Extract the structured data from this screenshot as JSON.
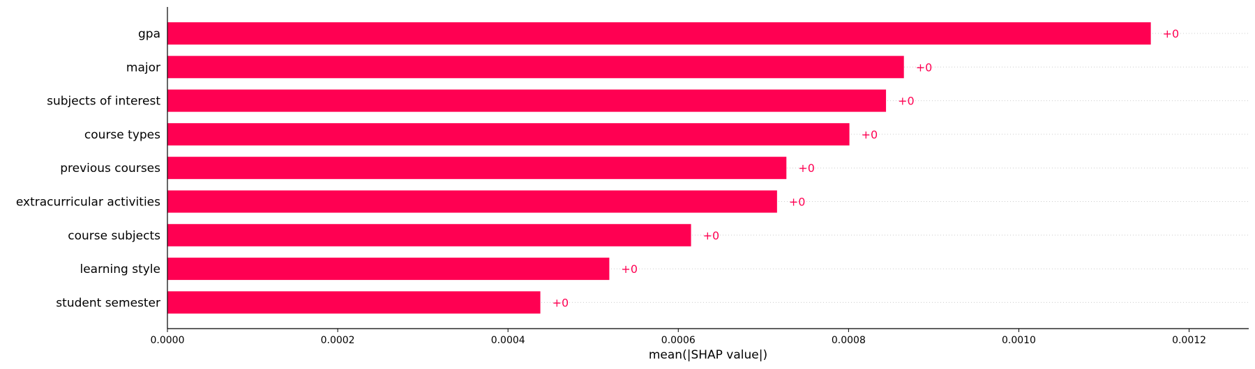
{
  "chart_data": {
    "type": "bar",
    "orientation": "horizontal",
    "categories": [
      "gpa",
      "major",
      "subjects of interest",
      "course types",
      "previous courses",
      "extracurricular activities",
      "course subjects",
      "learning style",
      "student semester"
    ],
    "values": [
      0.001155,
      0.000865,
      0.000844,
      0.000801,
      0.000727,
      0.000716,
      0.000615,
      0.000519,
      0.000438
    ],
    "value_labels": [
      "+0",
      "+0",
      "+0",
      "+0",
      "+0",
      "+0",
      "+0",
      "+0",
      "+0"
    ],
    "xlabel": "mean(|SHAP value|)",
    "ylabel": "",
    "title": "",
    "xlim": [
      0,
      0.00127
    ],
    "xticks": [
      0.0,
      0.0002,
      0.0004,
      0.0006,
      0.0008,
      0.001,
      0.0012
    ],
    "xtick_labels": [
      "0.0000",
      "0.0002",
      "0.0004",
      "0.0006",
      "0.0008",
      "0.0010",
      "0.0012"
    ],
    "bar_color": "#ff0052",
    "label_color": "#ff0052",
    "grid": "dotted row guides",
    "legend": "none"
  }
}
